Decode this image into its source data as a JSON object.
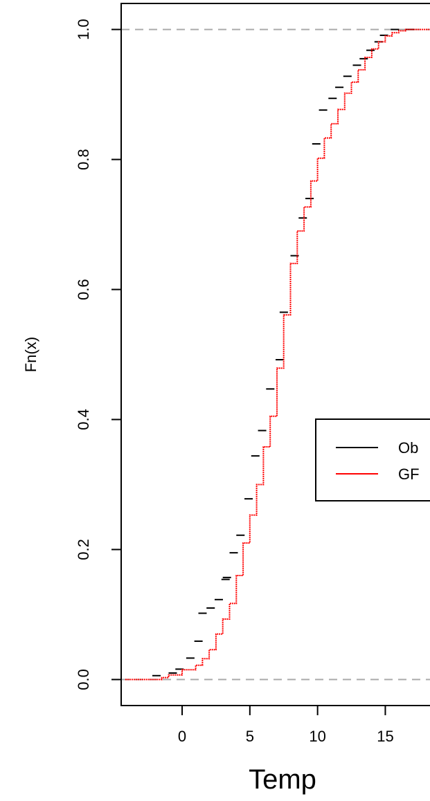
{
  "chart_data": {
    "type": "line",
    "xlabel": "Temp",
    "ylabel": "Fn(x)",
    "xlim": [
      -4.5,
      18.3
    ],
    "ylim": [
      -0.04,
      1.04
    ],
    "x_ticks": [
      0,
      5,
      10,
      15
    ],
    "y_ticks": [
      0.0,
      0.2,
      0.4,
      0.6,
      0.8,
      1.0
    ],
    "x_tick_labels": [
      "0",
      "5",
      "10",
      "15"
    ],
    "y_tick_labels": [
      "0.0",
      "0.2",
      "0.4",
      "0.6",
      "0.8",
      "1.0"
    ],
    "reference_lines": [
      0,
      1
    ],
    "grid": false,
    "legend": {
      "position": "right",
      "entries": [
        "Ob",
        "GF"
      ]
    },
    "series": [
      {
        "name": "Ob",
        "color": "#000000",
        "style": "step",
        "points": [
          [
            -2.2,
            0.006
          ],
          [
            -1.0,
            0.01
          ],
          [
            -0.5,
            0.016
          ],
          [
            0.3,
            0.033
          ],
          [
            0.9,
            0.059
          ],
          [
            1.2,
            0.102
          ],
          [
            1.8,
            0.11
          ],
          [
            2.4,
            0.123
          ],
          [
            2.9,
            0.154
          ],
          [
            3.0,
            0.157
          ],
          [
            3.5,
            0.195
          ],
          [
            4.0,
            0.222
          ],
          [
            4.6,
            0.278
          ],
          [
            5.1,
            0.344
          ],
          [
            5.6,
            0.383
          ],
          [
            6.2,
            0.447
          ],
          [
            6.9,
            0.492
          ],
          [
            7.2,
            0.565
          ],
          [
            8.0,
            0.652
          ],
          [
            8.6,
            0.71
          ],
          [
            9.1,
            0.74
          ],
          [
            9.6,
            0.824
          ],
          [
            10.1,
            0.876
          ],
          [
            10.8,
            0.894
          ],
          [
            11.3,
            0.911
          ],
          [
            11.9,
            0.928
          ],
          [
            12.6,
            0.945
          ],
          [
            13.1,
            0.955
          ],
          [
            13.6,
            0.968
          ],
          [
            14.2,
            0.981
          ],
          [
            14.6,
            0.991
          ],
          [
            15.4,
            1.0
          ],
          [
            16.5,
            1.0
          ]
        ]
      },
      {
        "name": "GF",
        "color": "#ff0000",
        "style": "line",
        "points": [
          [
            -4.2,
            0.0
          ],
          [
            -2.0,
            0.0
          ],
          [
            -1.5,
            0.003
          ],
          [
            -1.0,
            0.007
          ],
          [
            0.0,
            0.015
          ],
          [
            1.0,
            0.022
          ],
          [
            1.5,
            0.032
          ],
          [
            2.0,
            0.046
          ],
          [
            2.5,
            0.07
          ],
          [
            3.0,
            0.093
          ],
          [
            3.5,
            0.117
          ],
          [
            4.0,
            0.16
          ],
          [
            4.5,
            0.21
          ],
          [
            5.0,
            0.253
          ],
          [
            5.5,
            0.3
          ],
          [
            6.0,
            0.358
          ],
          [
            6.5,
            0.405
          ],
          [
            7.0,
            0.479
          ],
          [
            7.5,
            0.561
          ],
          [
            8.0,
            0.64
          ],
          [
            8.5,
            0.69
          ],
          [
            9.0,
            0.727
          ],
          [
            9.5,
            0.767
          ],
          [
            10.0,
            0.802
          ],
          [
            10.5,
            0.833
          ],
          [
            11.0,
            0.855
          ],
          [
            11.5,
            0.877
          ],
          [
            12.0,
            0.902
          ],
          [
            12.5,
            0.919
          ],
          [
            13.0,
            0.938
          ],
          [
            13.5,
            0.957
          ],
          [
            14.0,
            0.97
          ],
          [
            14.5,
            0.981
          ],
          [
            15.0,
            0.99
          ],
          [
            15.5,
            0.995
          ],
          [
            16.0,
            0.998
          ],
          [
            16.5,
            1.0
          ],
          [
            18.3,
            1.0
          ]
        ]
      }
    ]
  }
}
